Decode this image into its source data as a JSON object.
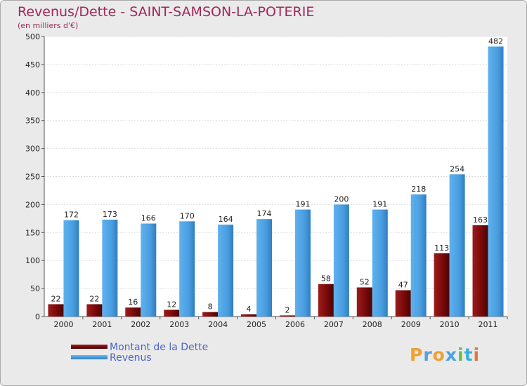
{
  "chart_data": {
    "type": "bar",
    "title": "Revenus/Dette - SAINT-SAMSON-LA-POTERIE",
    "subtitle": "(en milliers d'€)",
    "categories": [
      "2000",
      "2001",
      "2002",
      "2003",
      "2004",
      "2005",
      "2006",
      "2007",
      "2008",
      "2009",
      "2010",
      "2011"
    ],
    "series": [
      {
        "name": "Montant de la Dette",
        "values": [
          22,
          22,
          16,
          12,
          8,
          4,
          2,
          58,
          52,
          47,
          113,
          163
        ],
        "color": "#7a0a0a"
      },
      {
        "name": "Revenus",
        "values": [
          172,
          173,
          166,
          170,
          164,
          174,
          191,
          200,
          191,
          218,
          254,
          482
        ],
        "color": "#4a9ee0"
      }
    ],
    "ylim": [
      0,
      500
    ],
    "yticks": [
      0,
      50,
      100,
      150,
      200,
      250,
      300,
      350,
      400,
      450,
      500
    ],
    "grid": true,
    "legend_position": "bottom-left"
  },
  "logo": {
    "letters": [
      "P",
      "r",
      "o",
      "x",
      "i",
      "t",
      "i"
    ],
    "colors": [
      "#f0a030",
      "#5aa0d8",
      "#f0a030",
      "#4aa3df",
      "#6cbf3a",
      "#3ab0e0",
      "#e07840"
    ]
  }
}
